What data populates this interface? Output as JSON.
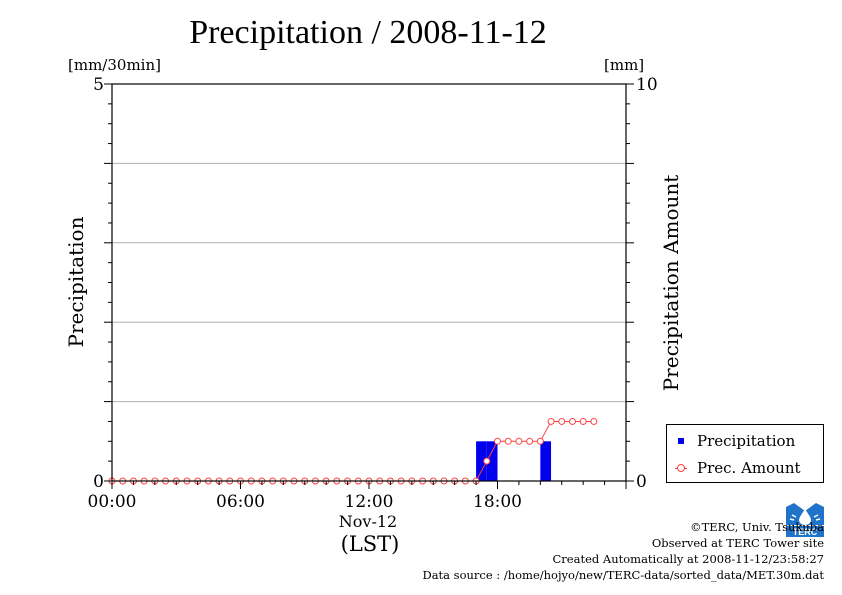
{
  "title": "Precipitation / 2008-11-12",
  "left_unit": "[mm/30min]",
  "right_unit": "[mm]",
  "colors": {
    "bar": "#0000ee",
    "amount": "#ff4040",
    "grid": "#b0b0b0",
    "logo": "#1f73c8"
  },
  "chart_data": {
    "type": "bar",
    "xlabel": "Nov-12",
    "xlabel_sub": "(LST)",
    "ylabel_left": "Precipitation",
    "ylabel_right": "Precipitation Amount",
    "x_ticks": [
      "00:00",
      "06:00",
      "12:00",
      "18:00"
    ],
    "x_tick_hours": [
      0,
      6,
      12,
      18
    ],
    "xlim_hours": [
      0,
      24
    ],
    "ylim_left": [
      0,
      5
    ],
    "ylim_right": [
      0,
      10
    ],
    "y_ticks_left": [
      "0",
      "5"
    ],
    "y_ticks_right": [
      "0",
      "10"
    ],
    "grid": true,
    "legend_position": "bottom-right",
    "series": [
      {
        "name": "Precipitation",
        "kind": "bar",
        "axis": "left",
        "values": [
          0,
          0,
          0,
          0,
          0,
          0,
          0,
          0,
          0,
          0,
          0,
          0,
          0,
          0,
          0,
          0,
          0,
          0,
          0,
          0,
          0,
          0,
          0,
          0,
          0,
          0,
          0,
          0,
          0,
          0,
          0,
          0,
          0,
          0,
          0.5,
          0.5,
          0,
          0,
          0,
          0,
          0.5,
          0,
          0,
          0,
          0,
          0,
          0
        ]
      },
      {
        "name": "Prec. Amount",
        "kind": "line",
        "axis": "right",
        "values": [
          0,
          0,
          0,
          0,
          0,
          0,
          0,
          0,
          0,
          0,
          0,
          0,
          0,
          0,
          0,
          0,
          0,
          0,
          0,
          0,
          0,
          0,
          0,
          0,
          0,
          0,
          0,
          0,
          0,
          0,
          0,
          0,
          0,
          0,
          0,
          0.5,
          1,
          1,
          1,
          1,
          1,
          1.5,
          1.5,
          1.5,
          1.5,
          1.5
        ]
      }
    ]
  },
  "credits": {
    "line1": "©TERC, Univ. Tsukuba",
    "line2": "Observed at TERC Tower site",
    "line3": "Created Automatically at 2008-11-12/23:58:27",
    "line4": "Data source : /home/hojyo/new/TERC-data/sorted_data/MET.30m.dat"
  },
  "logo_text": "TERC"
}
